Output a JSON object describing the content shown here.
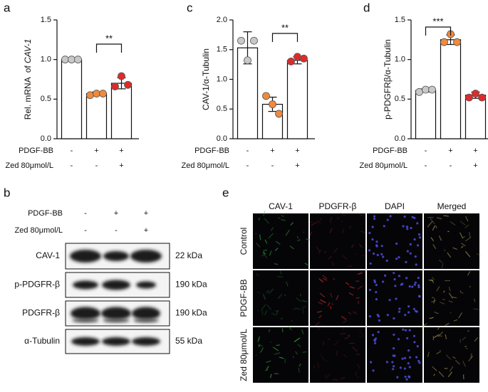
{
  "chart_data": [
    {
      "type": "bar",
      "panel": "a",
      "ylabel": "Rel. mRNA  of ",
      "ylabel_italic": "CAV-1",
      "ylim": [
        0,
        1.5
      ],
      "yticks": [
        {
          "value": 0,
          "label": "0.0"
        },
        {
          "value": 0.5,
          "label": "0.5"
        },
        {
          "value": 1,
          "label": "1.0"
        },
        {
          "value": 1.5,
          "label": "1.5"
        }
      ],
      "values": [
        1.0,
        0.57,
        0.7
      ],
      "errors": [
        0.0,
        0.02,
        0.07
      ],
      "points": [
        [
          1.0,
          1.0,
          1.0
        ],
        [
          0.55,
          0.57,
          0.57
        ],
        [
          0.66,
          0.79,
          0.68
        ]
      ],
      "point_colors": [
        "#c8c8c8",
        "#f08a3c",
        "#e02a2a"
      ],
      "treatments": [
        {
          "name": "PDGF-BB",
          "values": [
            "-",
            "+",
            "+"
          ]
        },
        {
          "name": "Zed 80μmol/L",
          "values": [
            "-",
            "-",
            "+"
          ]
        }
      ],
      "significance": {
        "label": "**",
        "groups": [
          1,
          2
        ]
      }
    },
    {
      "type": "bar",
      "panel": "c",
      "ylabel": "CAV-1/α-Tubulin",
      "ylim": [
        0,
        2.0
      ],
      "yticks": [
        {
          "value": 0,
          "label": "0.0"
        },
        {
          "value": 0.5,
          "label": "0.5"
        },
        {
          "value": 1,
          "label": "1.0"
        },
        {
          "value": 1.5,
          "label": "1.5"
        },
        {
          "value": 2,
          "label": "2.0"
        }
      ],
      "values": [
        1.53,
        0.58,
        1.32
      ],
      "errors": [
        0.27,
        0.12,
        0.06
      ],
      "points": [
        [
          1.65,
          1.32,
          1.65
        ],
        [
          0.72,
          0.58,
          0.42
        ],
        [
          1.3,
          1.38,
          1.35
        ]
      ],
      "point_colors": [
        "#c8c8c8",
        "#f08a3c",
        "#e02a2a"
      ],
      "treatments": [
        {
          "name": "PDGF-BB",
          "values": [
            "-",
            "+",
            "+"
          ]
        },
        {
          "name": "Zed 80μmol/L",
          "values": [
            "-",
            "-",
            "+"
          ]
        }
      ],
      "significance": {
        "label": "**",
        "groups": [
          1,
          2
        ]
      }
    },
    {
      "type": "bar",
      "panel": "d",
      "ylabel": "p-PDGFRβ/α-Tubulin",
      "ylim": [
        0,
        1.5
      ],
      "yticks": [
        {
          "value": 0,
          "label": "0.0"
        },
        {
          "value": 0.5,
          "label": "0.5"
        },
        {
          "value": 1,
          "label": "1.0"
        },
        {
          "value": 1.5,
          "label": "1.5"
        }
      ],
      "values": [
        0.61,
        1.25,
        0.55
      ],
      "errors": [
        0.02,
        0.06,
        0.04
      ],
      "points": [
        [
          0.59,
          0.62,
          0.62
        ],
        [
          1.22,
          1.32,
          1.22
        ],
        [
          0.52,
          0.57,
          0.52
        ]
      ],
      "point_colors": [
        "#c8c8c8",
        "#f08a3c",
        "#e02a2a"
      ],
      "treatments": [
        {
          "name": "PDGF-BB",
          "values": [
            "-",
            "+",
            "+"
          ]
        },
        {
          "name": "Zed 80μmol/L",
          "values": [
            "-",
            "-",
            "+"
          ]
        }
      ],
      "significance": {
        "label": "***",
        "groups": [
          0,
          1
        ]
      }
    }
  ],
  "panel_b": {
    "panel": "b",
    "treatments": [
      {
        "name": "PDGF-BB",
        "values": [
          "-",
          "+",
          "+"
        ]
      },
      {
        "name": "Zed 80μmol/L",
        "values": [
          "-",
          "-",
          "+"
        ]
      }
    ],
    "blots": [
      {
        "name": "CAV-1",
        "size": "22 kDa"
      },
      {
        "name": "p-PDGFR-β",
        "size": "190 kDa"
      },
      {
        "name": "PDGFR-β",
        "size": "190 kDa"
      },
      {
        "name": "α-Tubulin",
        "size": "55 kDa"
      }
    ]
  },
  "panel_e": {
    "panel": "e",
    "columns": [
      "CAV-1",
      "PDGFR-β",
      "DAPI",
      "Merged"
    ],
    "rows": [
      "Control",
      "PDGF-BB",
      "Zed 80μmol/L"
    ]
  }
}
